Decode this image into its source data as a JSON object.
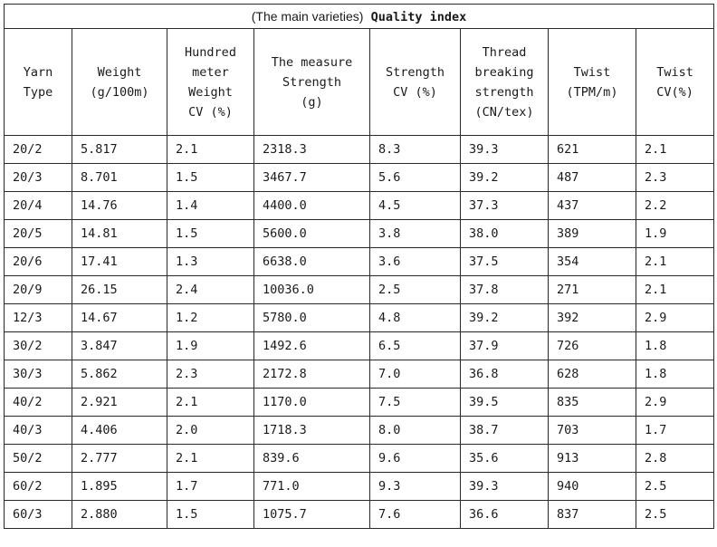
{
  "title": {
    "prefix": "(The main varieties)",
    "main": "Quality index"
  },
  "columns": [
    "Yarn\nType",
    "Weight\n(g/100m)",
    "Hundred\nmeter\nWeight\nCV (%)",
    "The measure\nStrength\n(g)",
    "Strength\nCV (%)",
    "Thread\nbreaking\nstrength\n(CN/tex)",
    "Twist\n(TPM/m)",
    "Twist\nCV(%)"
  ],
  "rows": [
    [
      "20/2",
      "5.817",
      "2.1",
      "2318.3",
      "8.3",
      "39.3",
      "621",
      "2.1"
    ],
    [
      "20/3",
      "8.701",
      "1.5",
      "3467.7",
      "5.6",
      "39.2",
      "487",
      "2.3"
    ],
    [
      "20/4",
      "14.76",
      "1.4",
      "4400.0",
      "4.5",
      "37.3",
      "437",
      "2.2"
    ],
    [
      "20/5",
      "14.81",
      "1.5",
      "5600.0",
      "3.8",
      "38.0",
      "389",
      "1.9"
    ],
    [
      "20/6",
      "17.41",
      "1.3",
      "6638.0",
      "3.6",
      "37.5",
      "354",
      "2.1"
    ],
    [
      "20/9",
      "26.15",
      "2.4",
      "10036.0",
      "2.5",
      "37.8",
      "271",
      "2.1"
    ],
    [
      "12/3",
      "14.67",
      "1.2",
      "5780.0",
      "4.8",
      "39.2",
      "392",
      "2.9"
    ],
    [
      "30/2",
      "3.847",
      "1.9",
      "1492.6",
      "6.5",
      "37.9",
      "726",
      "1.8"
    ],
    [
      "30/3",
      "5.862",
      "2.3",
      "2172.8",
      "7.0",
      "36.8",
      "628",
      "1.8"
    ],
    [
      "40/2",
      "2.921",
      "2.1",
      "1170.0",
      "7.5",
      "39.5",
      "835",
      "2.9"
    ],
    [
      "40/3",
      "4.406",
      "2.0",
      "1718.3",
      "8.0",
      "38.7",
      "703",
      "1.7"
    ],
    [
      "50/2",
      "2.777",
      "2.1",
      "839.6",
      "9.6",
      "35.6",
      "913",
      "2.8"
    ],
    [
      "60/2",
      "1.895",
      "1.7",
      "771.0",
      "9.3",
      "39.3",
      "940",
      "2.5"
    ],
    [
      "60/3",
      "2.880",
      "1.5",
      "1075.7",
      "7.6",
      "36.6",
      "837",
      "2.5"
    ]
  ]
}
